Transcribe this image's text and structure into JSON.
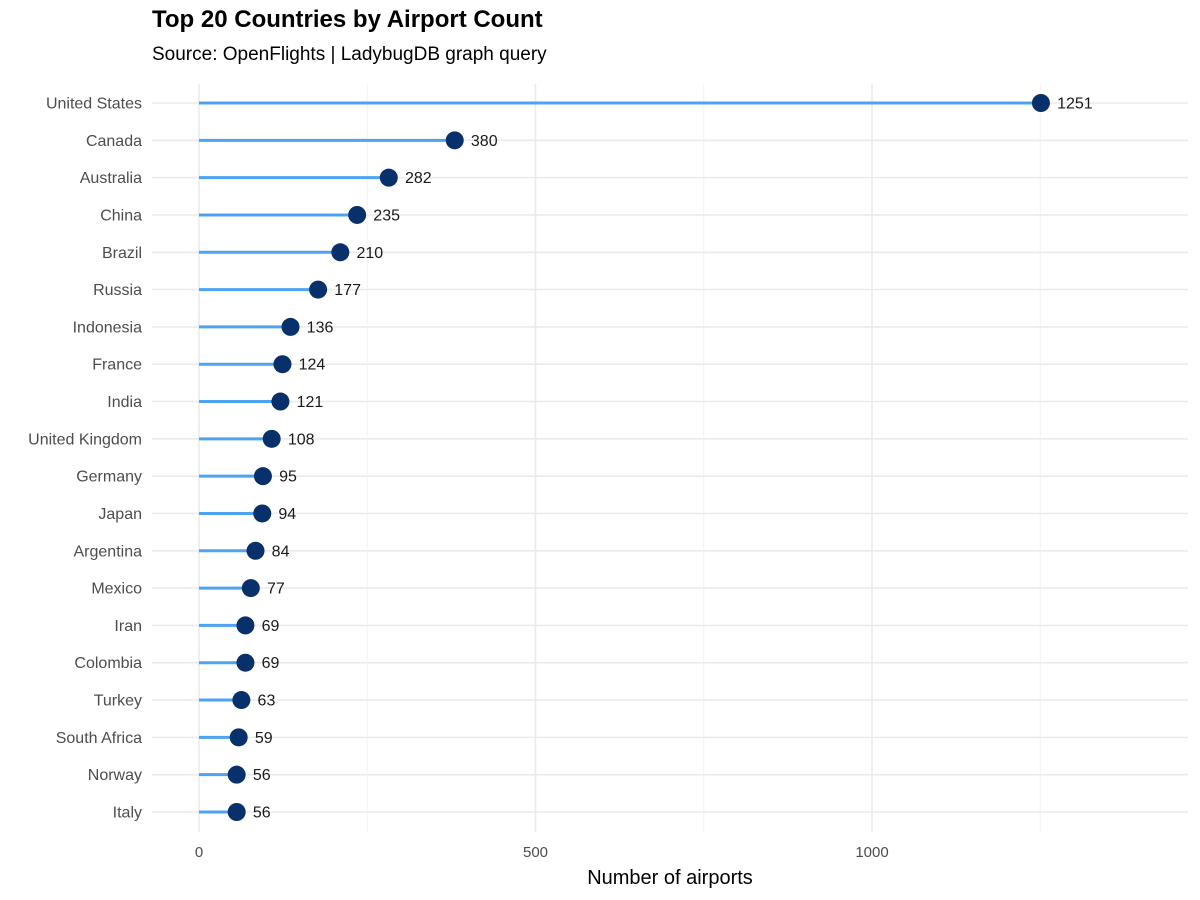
{
  "chart_data": {
    "type": "lollipop",
    "title": "Top 20 Countries by Airport Count",
    "subtitle": "Source: OpenFlights  |  LadybugDB graph query",
    "xlabel": "Number of airports",
    "ylabel": "",
    "xlim": [
      -120,
      1470
    ],
    "xticks": [
      0,
      500,
      1000
    ],
    "xtick_labels": [
      "0",
      "500",
      "1000"
    ],
    "grid": true,
    "categories": [
      "United States",
      "Canada",
      "Australia",
      "China",
      "Brazil",
      "Russia",
      "Indonesia",
      "France",
      "India",
      "United Kingdom",
      "Germany",
      "Japan",
      "Argentina",
      "Mexico",
      "Iran",
      "Colombia",
      "Turkey",
      "South Africa",
      "Norway",
      "Italy"
    ],
    "values": [
      1251,
      380,
      282,
      235,
      210,
      177,
      136,
      124,
      121,
      108,
      95,
      94,
      84,
      77,
      69,
      69,
      63,
      59,
      56,
      56
    ],
    "colors": {
      "stem": "#4da3f0",
      "dot": "#08306b",
      "grid": "#ebebeb"
    }
  }
}
